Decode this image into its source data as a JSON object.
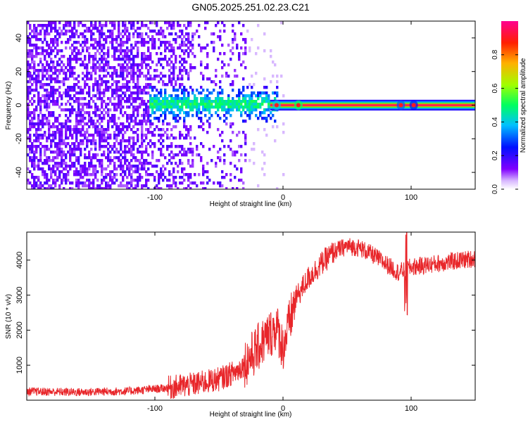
{
  "title": "GN05.2025.251.02.23.C21",
  "chart_data": [
    {
      "type": "heatmap",
      "name": "spectrogram",
      "xlabel": "Height of straight line (km)",
      "ylabel": "Frequency (Hz)",
      "xlim": [
        -200,
        150
      ],
      "ylim": [
        -50,
        50
      ],
      "xticks": [
        -100,
        0,
        100
      ],
      "yticks": [
        -40,
        -20,
        0,
        20,
        40
      ],
      "colorbar": {
        "label": "Normalized spectral amplitude",
        "range": [
          0,
          1
        ],
        "ticks": [
          "0.0",
          "0.2",
          "0.4",
          "0.6",
          "0.8"
        ],
        "colors": [
          "#ffffff",
          "#8000ff",
          "#0000ff",
          "#00c0ff",
          "#00ff40",
          "#c0ff00",
          "#ff8000",
          "#ff0000",
          "#ff0080"
        ]
      },
      "description_points": {
        "noise_region_x": [
          -200,
          -30
        ],
        "scatter_band_x": [
          -100,
          -10
        ],
        "scatter_band_freq": [
          -8,
          12
        ],
        "tone_line_x": [
          -10,
          150
        ],
        "tone_freq": 0,
        "tone_amplitude": 0.95
      }
    },
    {
      "type": "line",
      "name": "snr",
      "xlabel": "Height of straight line (km)",
      "ylabel": "SNR (10 * v/v)",
      "xlim": [
        -200,
        150
      ],
      "ylim": [
        0,
        4800
      ],
      "xticks": [
        -100,
        0,
        100
      ],
      "yticks": [
        1000,
        2000,
        3000,
        4000
      ],
      "color": "#e8262a",
      "trend": {
        "x": [
          -200,
          -160,
          -120,
          -90,
          -70,
          -50,
          -35,
          -25,
          -15,
          -5,
          0,
          5,
          10,
          20,
          30,
          40,
          50,
          60,
          70,
          80,
          90,
          100,
          110,
          120,
          130,
          140,
          150
        ],
        "y": [
          250,
          230,
          260,
          350,
          450,
          600,
          850,
          1250,
          1700,
          2100,
          1500,
          2200,
          2900,
          3500,
          3900,
          4250,
          4400,
          4350,
          4150,
          3900,
          3650,
          3800,
          3850,
          3900,
          3950,
          4000,
          4050
        ]
      }
    }
  ]
}
